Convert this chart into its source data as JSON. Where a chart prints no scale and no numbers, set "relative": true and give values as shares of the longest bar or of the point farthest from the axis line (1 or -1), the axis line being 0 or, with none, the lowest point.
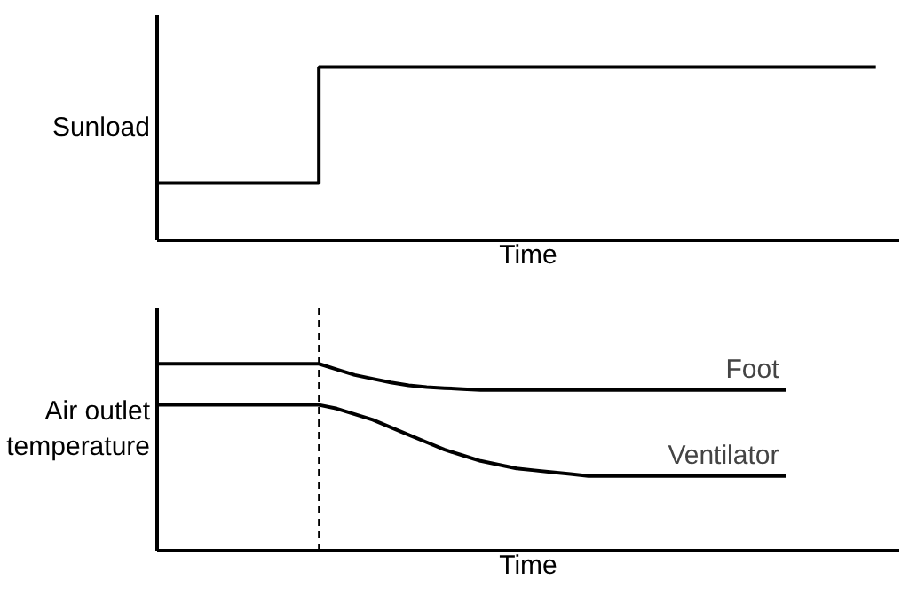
{
  "chart_data": [
    {
      "type": "step",
      "relative": true,
      "xlabel": "Time",
      "ylabel": "Sunload",
      "categories": [
        null,
        null,
        null,
        null,
        null,
        null,
        null,
        null,
        null,
        null,
        null,
        null,
        null,
        null,
        null,
        null,
        null,
        null,
        null,
        null,
        null,
        null,
        null,
        null,
        null,
        null,
        null,
        null,
        null,
        null,
        null,
        null,
        null,
        null,
        null,
        null,
        null,
        null,
        null,
        null,
        null
      ],
      "series": [
        {
          "color": "#000000",
          "values": [
            0.33,
            0.33,
            0.33,
            0.33,
            0.33,
            0.33,
            0.33,
            0.33,
            0.33,
            1,
            1,
            1,
            1,
            1,
            1,
            1,
            1,
            1,
            1,
            1,
            1,
            1,
            1,
            1,
            1,
            1,
            1,
            1,
            1,
            1,
            1,
            1,
            1,
            1,
            1,
            1,
            1,
            1,
            1,
            1,
            1
          ]
        }
      ]
    },
    {
      "type": "line",
      "relative": true,
      "xlabel": "Time",
      "ylabel": "Air outlet temperature",
      "categories": [
        null,
        null,
        null,
        null,
        null,
        null,
        null,
        null,
        null,
        null,
        null,
        null,
        null,
        null,
        null,
        null,
        null,
        null,
        null,
        null,
        null,
        null,
        null,
        null,
        null,
        null,
        null,
        null,
        null,
        null,
        null,
        null,
        null,
        null,
        null,
        null,
        null,
        null,
        null,
        null,
        null
      ],
      "series": [
        {
          "name": "Foot",
          "color": "#000000",
          "values": [
            1,
            1,
            1,
            1,
            1,
            1,
            1,
            1,
            1,
            1,
            0.97,
            0.94,
            0.92,
            0.9,
            0.885,
            0.875,
            0.87,
            0.865,
            0.86,
            0.86,
            0.86,
            0.86,
            0.86,
            0.86,
            0.86,
            0.86,
            0.86,
            0.86,
            0.86,
            0.86,
            0.86,
            0.86,
            0.86,
            0.86,
            0.86,
            0.86,
            null,
            null,
            null,
            null,
            null
          ]
        },
        {
          "name": "Ventilator",
          "color": "#000000",
          "values": [
            0.78,
            0.78,
            0.78,
            0.78,
            0.78,
            0.78,
            0.78,
            0.78,
            0.78,
            0.78,
            0.76,
            0.73,
            0.7,
            0.66,
            0.62,
            0.58,
            0.54,
            0.51,
            0.48,
            0.46,
            0.44,
            0.43,
            0.42,
            0.41,
            0.4,
            0.4,
            0.4,
            0.4,
            0.4,
            0.4,
            0.4,
            0.4,
            0.4,
            0.4,
            0.4,
            0.4,
            null,
            null,
            null,
            null,
            null
          ]
        }
      ]
    }
  ]
}
